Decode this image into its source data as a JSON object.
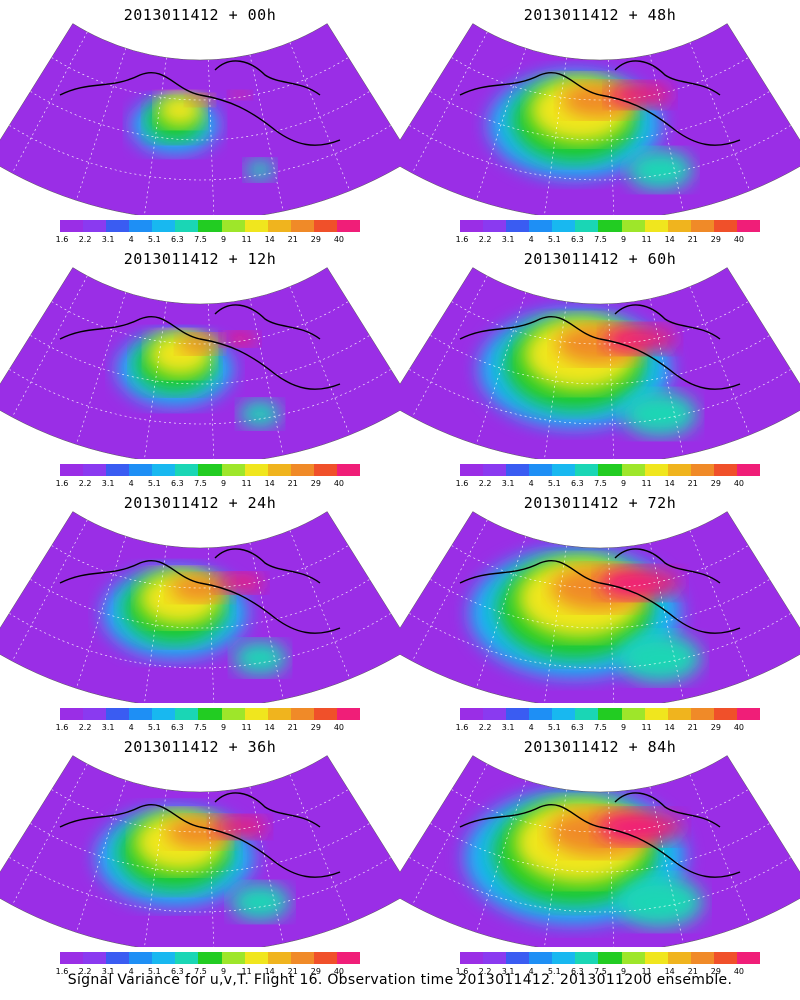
{
  "panels": [
    {
      "title": "2013011412 + 00h",
      "intensity": 0.25
    },
    {
      "title": "2013011412 + 48h",
      "intensity": 0.7
    },
    {
      "title": "2013011412 + 12h",
      "intensity": 0.4
    },
    {
      "title": "2013011412 + 60h",
      "intensity": 0.8
    },
    {
      "title": "2013011412 + 24h",
      "intensity": 0.55
    },
    {
      "title": "2013011412 + 72h",
      "intensity": 0.9
    },
    {
      "title": "2013011412 + 36h",
      "intensity": 0.62
    },
    {
      "title": "2013011412 + 84h",
      "intensity": 0.95
    }
  ],
  "colorbar": {
    "labels": [
      "1.6",
      "2.2",
      "3.1",
      "4",
      "5.1",
      "6.3",
      "7.5",
      "9",
      "11",
      "14",
      "21",
      "29",
      "40"
    ],
    "colors": [
      "#9a2ee6",
      "#8a3af0",
      "#3a5cf2",
      "#1e8ff5",
      "#18b8f0",
      "#1ad6b5",
      "#22cc22",
      "#9ee62a",
      "#f0e61e",
      "#f0b41e",
      "#f08a28",
      "#f0502a",
      "#f01e78"
    ]
  },
  "caption": "Signal Variance for u,v,T. Flight 16. Observation time 2013011412. 2013011200 ensemble."
}
